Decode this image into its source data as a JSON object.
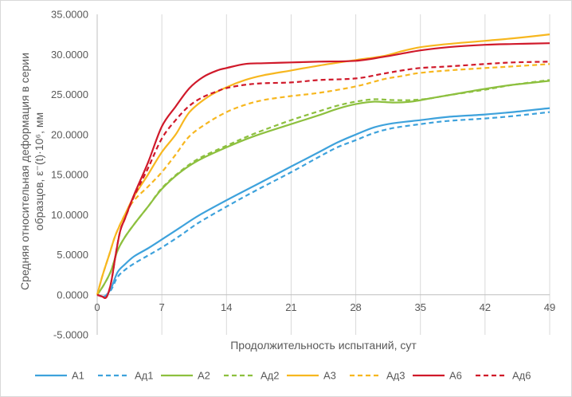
{
  "chart_data": {
    "type": "line",
    "title": "",
    "xlabel": "Продолжительность испытаний, сут",
    "ylabel_line1": "Средняя относительная деформация в серии",
    "ylabel_line2": "образцов,  ε⁻(t)·10⁶, мм",
    "xlim": [
      0,
      49
    ],
    "ylim": [
      -5,
      35
    ],
    "x_ticks": [
      0,
      7,
      14,
      21,
      28,
      35,
      42,
      49
    ],
    "y_ticks": [
      -5,
      0,
      5,
      10,
      15,
      20,
      25,
      30,
      35
    ],
    "y_tick_labels": [
      "-5.0000",
      "0.0000",
      "5.0000",
      "10.0000",
      "15.0000",
      "20.0000",
      "25.0000",
      "30.0000",
      "35.0000"
    ],
    "grid": "vertical",
    "legend_position": "bottom",
    "series": [
      {
        "name": "А1",
        "color": "#3ea2dc",
        "dash": "solid",
        "points": [
          [
            0,
            0
          ],
          [
            0.8,
            -0.2
          ],
          [
            1.5,
            0.8
          ],
          [
            2.2,
            2.8
          ],
          [
            3,
            3.8
          ],
          [
            4,
            4.8
          ],
          [
            5.5,
            5.8
          ],
          [
            7,
            6.9
          ],
          [
            9,
            8.4
          ],
          [
            11,
            9.9
          ],
          [
            14,
            11.8
          ],
          [
            17,
            13.6
          ],
          [
            21,
            16
          ],
          [
            24,
            17.8
          ],
          [
            26,
            19
          ],
          [
            28,
            20
          ],
          [
            30,
            20.9
          ],
          [
            32,
            21.4
          ],
          [
            35,
            21.8
          ],
          [
            38,
            22.2
          ],
          [
            42,
            22.5
          ],
          [
            45,
            22.8
          ],
          [
            49,
            23.3
          ]
        ]
      },
      {
        "name": "Ад1",
        "color": "#3ea2dc",
        "dash": "dashed",
        "points": [
          [
            0,
            0
          ],
          [
            0.8,
            -0.2
          ],
          [
            1.5,
            0.6
          ],
          [
            2.2,
            2.2
          ],
          [
            3,
            3.1
          ],
          [
            4,
            3.9
          ],
          [
            5.5,
            4.9
          ],
          [
            7,
            5.9
          ],
          [
            9,
            7.4
          ],
          [
            11,
            9
          ],
          [
            14,
            11
          ],
          [
            17,
            12.9
          ],
          [
            21,
            15.3
          ],
          [
            24,
            17.2
          ],
          [
            26,
            18.4
          ],
          [
            28,
            19.3
          ],
          [
            30,
            20.2
          ],
          [
            32,
            20.8
          ],
          [
            35,
            21.3
          ],
          [
            38,
            21.7
          ],
          [
            42,
            22
          ],
          [
            45,
            22.3
          ],
          [
            49,
            22.8
          ]
        ]
      },
      {
        "name": "А2",
        "color": "#8dc03f",
        "dash": "solid",
        "points": [
          [
            0,
            0
          ],
          [
            0.7,
            1.2
          ],
          [
            1.5,
            3
          ],
          [
            2.2,
            5.5
          ],
          [
            3,
            7.2
          ],
          [
            4,
            8.8
          ],
          [
            5.5,
            11
          ],
          [
            7,
            13.2
          ],
          [
            9,
            15.3
          ],
          [
            11,
            16.8
          ],
          [
            14,
            18.4
          ],
          [
            17,
            19.8
          ],
          [
            21,
            21.3
          ],
          [
            24,
            22.4
          ],
          [
            26,
            23.2
          ],
          [
            28,
            23.8
          ],
          [
            30,
            24.1
          ],
          [
            32,
            24
          ],
          [
            34,
            24.1
          ],
          [
            36,
            24.5
          ],
          [
            38,
            24.9
          ],
          [
            42,
            25.7
          ],
          [
            45,
            26.2
          ],
          [
            49,
            26.7
          ]
        ]
      },
      {
        "name": "Ад2",
        "color": "#8dc03f",
        "dash": "dashed",
        "points": [
          [
            0,
            0
          ],
          [
            0.7,
            1.2
          ],
          [
            1.5,
            3
          ],
          [
            2.2,
            5.5
          ],
          [
            3,
            7.2
          ],
          [
            4,
            8.8
          ],
          [
            5.5,
            11
          ],
          [
            7,
            13.3
          ],
          [
            9,
            15.4
          ],
          [
            11,
            17
          ],
          [
            14,
            18.6
          ],
          [
            17,
            20.1
          ],
          [
            21,
            21.8
          ],
          [
            24,
            22.9
          ],
          [
            26,
            23.6
          ],
          [
            28,
            24.1
          ],
          [
            30,
            24.4
          ],
          [
            32,
            24.3
          ],
          [
            34,
            24.3
          ],
          [
            36,
            24.5
          ],
          [
            38,
            24.9
          ],
          [
            42,
            25.6
          ],
          [
            45,
            26.2
          ],
          [
            49,
            26.8
          ]
        ]
      },
      {
        "name": "А3",
        "color": "#f7b71f",
        "dash": "solid",
        "points": [
          [
            0,
            0
          ],
          [
            0.6,
            2.5
          ],
          [
            1.3,
            5
          ],
          [
            2,
            7.5
          ],
          [
            3,
            10
          ],
          [
            4,
            12.3
          ],
          [
            5.5,
            15
          ],
          [
            7,
            17.8
          ],
          [
            8.5,
            20
          ],
          [
            10,
            22.8
          ],
          [
            12,
            24.7
          ],
          [
            14,
            25.9
          ],
          [
            16,
            26.8
          ],
          [
            18,
            27.4
          ],
          [
            21,
            28
          ],
          [
            24,
            28.6
          ],
          [
            28,
            29.3
          ],
          [
            31,
            29.8
          ],
          [
            33,
            30.4
          ],
          [
            35,
            30.9
          ],
          [
            38,
            31.3
          ],
          [
            42,
            31.7
          ],
          [
            45,
            32
          ],
          [
            49,
            32.5
          ]
        ]
      },
      {
        "name": "Ад3",
        "color": "#f7b71f",
        "dash": "dashed",
        "points": [
          [
            0,
            0
          ],
          [
            0.6,
            2.5
          ],
          [
            1.3,
            5
          ],
          [
            2,
            7.5
          ],
          [
            3,
            10
          ],
          [
            4,
            11.8
          ],
          [
            5.5,
            13.5
          ],
          [
            7,
            15.3
          ],
          [
            8.5,
            17.5
          ],
          [
            10,
            19.8
          ],
          [
            12,
            21.5
          ],
          [
            14,
            22.8
          ],
          [
            16,
            23.7
          ],
          [
            18,
            24.3
          ],
          [
            21,
            24.8
          ],
          [
            24,
            25.2
          ],
          [
            28,
            26
          ],
          [
            31,
            26.9
          ],
          [
            33,
            27.3
          ],
          [
            35,
            27.7
          ],
          [
            38,
            28
          ],
          [
            42,
            28.3
          ],
          [
            45,
            28.5
          ],
          [
            49,
            28.8
          ]
        ]
      },
      {
        "name": "А6",
        "color": "#d0192a",
        "dash": "solid",
        "points": [
          [
            0,
            0
          ],
          [
            0.5,
            -0.2
          ],
          [
            1,
            -0.3
          ],
          [
            1.5,
            1.5
          ],
          [
            2,
            5
          ],
          [
            2.5,
            8
          ],
          [
            3,
            9.5
          ],
          [
            4,
            12.5
          ],
          [
            5.5,
            16.5
          ],
          [
            7,
            21
          ],
          [
            8.5,
            23.5
          ],
          [
            10,
            25.8
          ],
          [
            11.5,
            27.2
          ],
          [
            13,
            28
          ],
          [
            14,
            28.3
          ],
          [
            16,
            28.8
          ],
          [
            18,
            28.9
          ],
          [
            21,
            29
          ],
          [
            24,
            29.1
          ],
          [
            28,
            29.2
          ],
          [
            31,
            29.7
          ],
          [
            33,
            30.1
          ],
          [
            35,
            30.5
          ],
          [
            38,
            30.9
          ],
          [
            42,
            31.2
          ],
          [
            45,
            31.3
          ],
          [
            49,
            31.4
          ]
        ]
      },
      {
        "name": "Ад6",
        "color": "#d0192a",
        "dash": "dashed",
        "points": [
          [
            0,
            0
          ],
          [
            0.5,
            -0.2
          ],
          [
            1,
            -0.3
          ],
          [
            1.5,
            1.5
          ],
          [
            2,
            5
          ],
          [
            2.5,
            8
          ],
          [
            3,
            9.5
          ],
          [
            4,
            12.3
          ],
          [
            5.5,
            15.8
          ],
          [
            7,
            19.5
          ],
          [
            8.5,
            21.8
          ],
          [
            10,
            23.6
          ],
          [
            11.5,
            24.7
          ],
          [
            13,
            25.4
          ],
          [
            14,
            25.8
          ],
          [
            16,
            26.2
          ],
          [
            18,
            26.4
          ],
          [
            21,
            26.5
          ],
          [
            24,
            26.8
          ],
          [
            28,
            27
          ],
          [
            31,
            27.6
          ],
          [
            33,
            28
          ],
          [
            35,
            28.3
          ],
          [
            38,
            28.5
          ],
          [
            42,
            28.8
          ],
          [
            45,
            29
          ],
          [
            49,
            29.1
          ]
        ]
      }
    ]
  }
}
